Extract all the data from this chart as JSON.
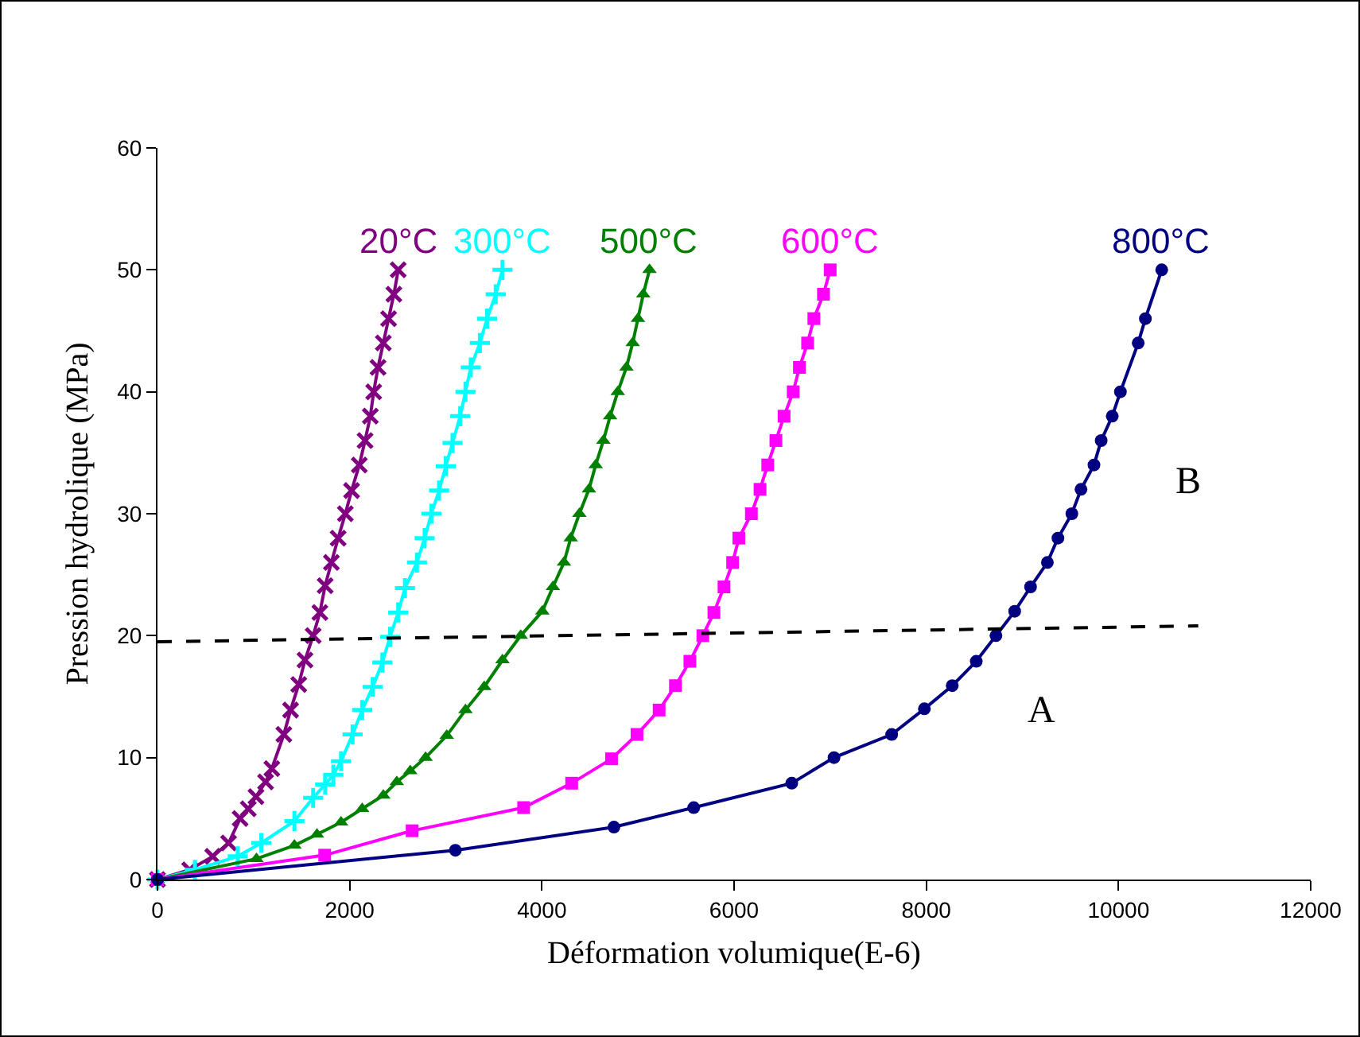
{
  "chart_data": {
    "type": "line",
    "xlabel": "Déformation volumique(E-6)",
    "ylabel": "Pression hydrolique (MPa)",
    "xlim": [
      0,
      12000
    ],
    "xticks": [
      0,
      2000,
      4000,
      6000,
      8000,
      10000,
      12000
    ],
    "ylim": [
      0,
      60
    ],
    "yticks": [
      0,
      10,
      20,
      30,
      40,
      50,
      60
    ],
    "grid": false,
    "legend": false,
    "line_style": "solid",
    "annotations": [
      "A",
      "B"
    ],
    "series": [
      {
        "name": "20°C",
        "color": "#800080",
        "marker": "cross",
        "x": [
          0,
          335,
          575,
          740,
          860,
          945,
          1025,
          1125,
          1190,
          1315,
          1385,
          1470,
          1535,
          1620,
          1690,
          1745,
          1810,
          1880,
          1955,
          2020,
          2100,
          2160,
          2215,
          2250,
          2295,
          2350,
          2405,
          2460,
          2505
        ],
        "values": [
          0,
          0.8,
          1.9,
          3,
          5,
          5.8,
          6.8,
          8,
          9.1,
          11.9,
          13.9,
          16,
          18,
          20,
          21.9,
          24.1,
          26,
          28,
          30,
          31.9,
          34,
          36,
          38,
          40,
          42,
          44,
          46,
          48,
          50
        ]
      },
      {
        "name": "300°C",
        "color": "#00ffff",
        "marker": "cross",
        "x": [
          0,
          390,
          835,
          1080,
          1425,
          1620,
          1745,
          1830,
          1910,
          2030,
          2130,
          2240,
          2340,
          2420,
          2505,
          2575,
          2700,
          2780,
          2850,
          2930,
          3000,
          3070,
          3150,
          3205,
          3260,
          3355,
          3430,
          3520,
          3590
        ],
        "values": [
          0,
          0.8,
          1.9,
          3,
          4.8,
          6.7,
          7.8,
          8.6,
          9.7,
          11.9,
          13.9,
          15.8,
          17.8,
          19.9,
          21.9,
          23.9,
          26,
          28,
          30,
          31.9,
          33.9,
          35.8,
          38,
          40,
          42,
          44,
          46,
          48,
          50
        ]
      },
      {
        "name": "500°C",
        "color": "#008000",
        "marker": "triangle",
        "x": [
          0,
          1030,
          1425,
          1660,
          1910,
          2130,
          2350,
          2490,
          2630,
          2790,
          3010,
          3205,
          3400,
          3590,
          3780,
          4005,
          4115,
          4230,
          4300,
          4390,
          4490,
          4560,
          4640,
          4710,
          4790,
          4880,
          4945,
          5000,
          5055,
          5120
        ],
        "values": [
          0,
          1.7,
          2.8,
          3.7,
          4.7,
          5.8,
          6.9,
          8,
          8.9,
          10,
          11.8,
          13.9,
          15.8,
          18,
          20,
          22,
          24,
          26,
          28,
          30,
          32,
          34,
          36,
          38,
          40,
          42,
          44,
          46,
          48,
          50
        ]
      },
      {
        "name": "600°C",
        "color": "#ff00ff",
        "marker": "square",
        "x": [
          0,
          1740,
          2650,
          3810,
          4310,
          4725,
          4990,
          5220,
          5390,
          5540,
          5675,
          5790,
          5895,
          5985,
          6050,
          6180,
          6270,
          6350,
          6435,
          6520,
          6615,
          6680,
          6765,
          6830,
          6930,
          7000
        ],
        "values": [
          0,
          2,
          4,
          5.9,
          7.9,
          9.9,
          11.9,
          13.9,
          15.9,
          17.9,
          20,
          21.9,
          24,
          26,
          28,
          30,
          32,
          34,
          36,
          38,
          40,
          42,
          44,
          46,
          48,
          50
        ]
      },
      {
        "name": "800°C",
        "color": "#000080",
        "marker": "circle",
        "x": [
          0,
          3100,
          4750,
          5580,
          6600,
          7040,
          7640,
          7980,
          8270,
          8520,
          8725,
          8920,
          9085,
          9260,
          9370,
          9515,
          9610,
          9745,
          9820,
          9935,
          10020,
          10205,
          10280,
          10450
        ],
        "values": [
          0,
          2.4,
          4.3,
          5.9,
          7.9,
          10,
          11.9,
          14,
          15.9,
          17.9,
          20,
          22,
          24,
          26,
          28,
          30,
          32,
          34,
          36,
          38,
          40,
          44,
          46,
          50
        ]
      },
      {
        "color": "#000000",
        "marker": "none",
        "line_style": "dashed",
        "x": [
          0,
          10830
        ],
        "values": [
          19.5,
          20.8
        ]
      }
    ]
  }
}
